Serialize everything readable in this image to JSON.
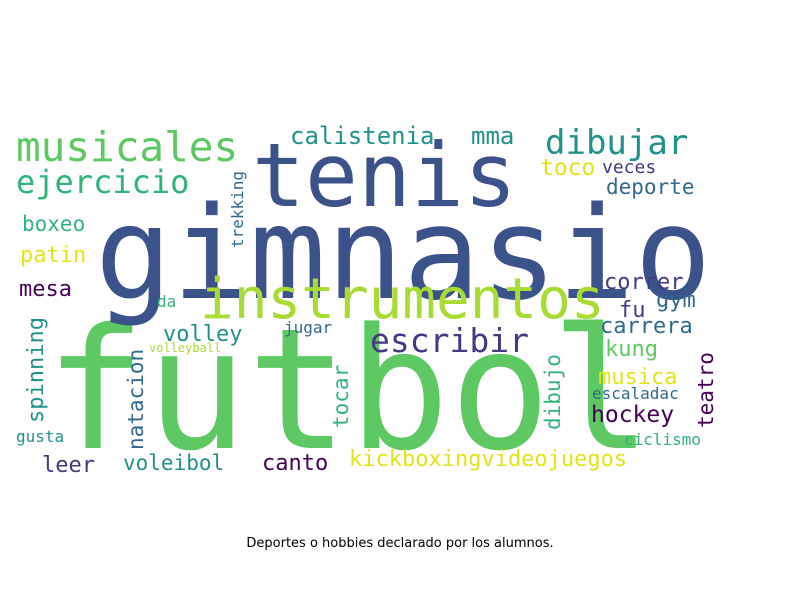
{
  "caption": "Deportes o hobbies declarado por los alumnos.",
  "palette": {
    "navy": "#3b528b",
    "green": "#5ec962",
    "lime": "#a8db34",
    "teal": "#21918c",
    "sea": "#2fb47c",
    "blue": "#31688e",
    "indigo": "#443983",
    "plum": "#440154",
    "yellow": "#e3e418",
    "aqua": "#35b779"
  },
  "words": [
    "futbol",
    "gimnasio",
    "tenis",
    "instrumentos",
    "musicales",
    "dibujar",
    "ejercicio",
    "escribir",
    "calistenia",
    "mma",
    "toco",
    "veces",
    "deporte",
    "boxeo",
    "trekking",
    "patin",
    "correr",
    "mesa",
    "gym",
    "fu",
    "carrera",
    "volley",
    "jugar",
    "da",
    "volleyball",
    "spinning",
    "kung",
    "natacion",
    "tocar",
    "dibujo",
    "musica",
    "teatro",
    "escaladac",
    "hockey",
    "gusta",
    "ciclismo",
    "leer",
    "voleibol",
    "canto",
    "kickboxingvideojuegos"
  ]
}
